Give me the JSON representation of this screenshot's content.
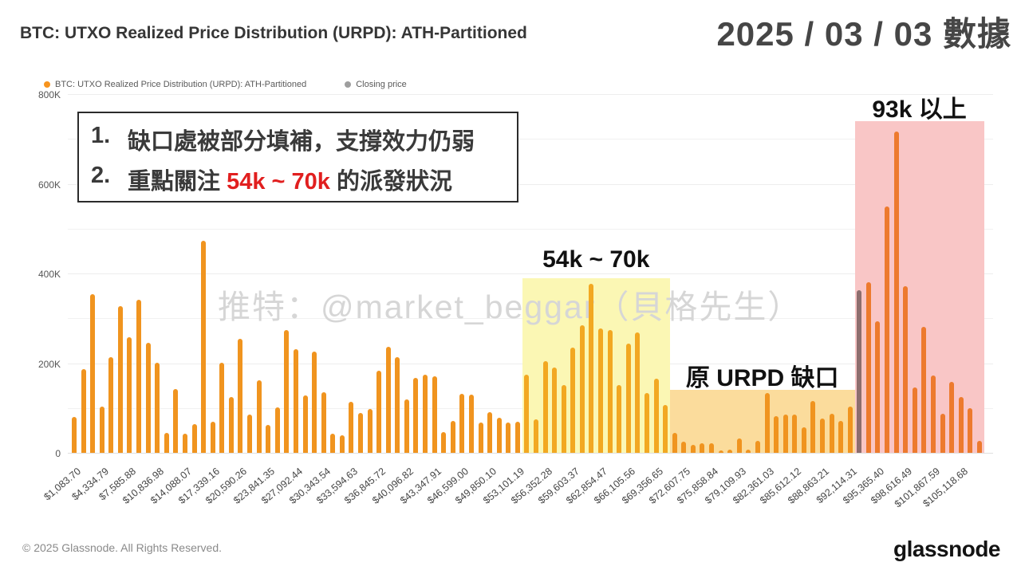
{
  "header": {
    "title": "BTC: UTXO Realized Price Distribution (URPD): ATH-Partitioned",
    "date_label": "2025 / 03 / 03 數據"
  },
  "legend": [
    {
      "label": "BTC: UTXO Realized Price Distribution (URPD): ATH-Partitioned",
      "color": "#F7941E"
    },
    {
      "label": "Closing price",
      "color": "#9E9E9E"
    }
  ],
  "annotation_box": {
    "line1_num": "1.",
    "line1_text": "缺口處被部分填補，支撐效力仍弱",
    "line2_num": "2.",
    "line2_pre": "重點關注 ",
    "line2_red": "54k ~ 70k",
    "line2_post": " 的派發狀況",
    "red_color": "#e11f1f"
  },
  "watermark": "推特：@market_beggar（貝格先生）",
  "footer": {
    "copyright": "© 2025 Glassnode. All Rights Reserved.",
    "brand": "glassnode"
  },
  "chart_data": {
    "type": "bar",
    "title": "BTC: UTXO Realized Price Distribution (URPD): ATH-Partitioned",
    "ylabel": "",
    "ylim": [
      0,
      800000
    ],
    "ytick_labels": [
      "0",
      "200K",
      "400K",
      "600K",
      "800K"
    ],
    "grid": "horizontal-100K",
    "legend_position": "top-left",
    "bucket_width_usd": 1083.7,
    "x_tick_labels": [
      "$1,083.70",
      "$4,334.79",
      "$7,585.88",
      "$10,836.98",
      "$14,088.07",
      "$17,339.16",
      "$20,590.26",
      "$23,841.35",
      "$27,092.44",
      "$30,343.54",
      "$33,594.63",
      "$36,845.72",
      "$40,096.82",
      "$43,347.91",
      "$46,599.00",
      "$49,850.10",
      "$53,101.19",
      "$56,352.28",
      "$59,603.37",
      "$62,854.47",
      "$66,105.56",
      "$69,356.65",
      "$72,607.75",
      "$75,858.84",
      "$79,109.93",
      "$82,361.03",
      "$85,612.12",
      "$88,863.21",
      "$92,114.31",
      "$95,365.40",
      "$98,616.49",
      "$101,867.59",
      "$105,118.68"
    ],
    "values_thousands": [
      80,
      187,
      353,
      103,
      213,
      328,
      257,
      342,
      245,
      201,
      44,
      142,
      42,
      64,
      473,
      70,
      201,
      124,
      254,
      86,
      161,
      62,
      101,
      274,
      232,
      128,
      226,
      135,
      42,
      39,
      114,
      89,
      98,
      183,
      237,
      213,
      119,
      168,
      174,
      170,
      46,
      72,
      131,
      129,
      68,
      91,
      79,
      67,
      70,
      174,
      75,
      205,
      191,
      152,
      235,
      284,
      377,
      278,
      274,
      152,
      244,
      268,
      134,
      165,
      106,
      45,
      25,
      17,
      22,
      22,
      5,
      8,
      32,
      8,
      26,
      133,
      82,
      86,
      86,
      57,
      116,
      76,
      87,
      72,
      103,
      362,
      380,
      293,
      549,
      716,
      372,
      145,
      281,
      172,
      87,
      159,
      125,
      99,
      26
    ],
    "closing_price_bar_index": 85,
    "bar_colors": {
      "normal": "#F0941F",
      "yellow_zone": "#F2A822",
      "red_zone": "#ED7A2E",
      "closing": "#8D6E6E"
    },
    "regions": [
      {
        "label": "54k ~ 70k",
        "color": "#FBF7B4",
        "from_bar": 49,
        "to_bar": 64,
        "top_k": 390
      },
      {
        "label": "原 URPD 缺口",
        "color": "#FBDC9C",
        "from_bar": 65,
        "to_bar": 84,
        "top_k": 140
      },
      {
        "label": "93k 以上",
        "color": "#F9C6C6",
        "from_bar": 85,
        "to_bar": 98,
        "top_k": 740
      }
    ]
  }
}
